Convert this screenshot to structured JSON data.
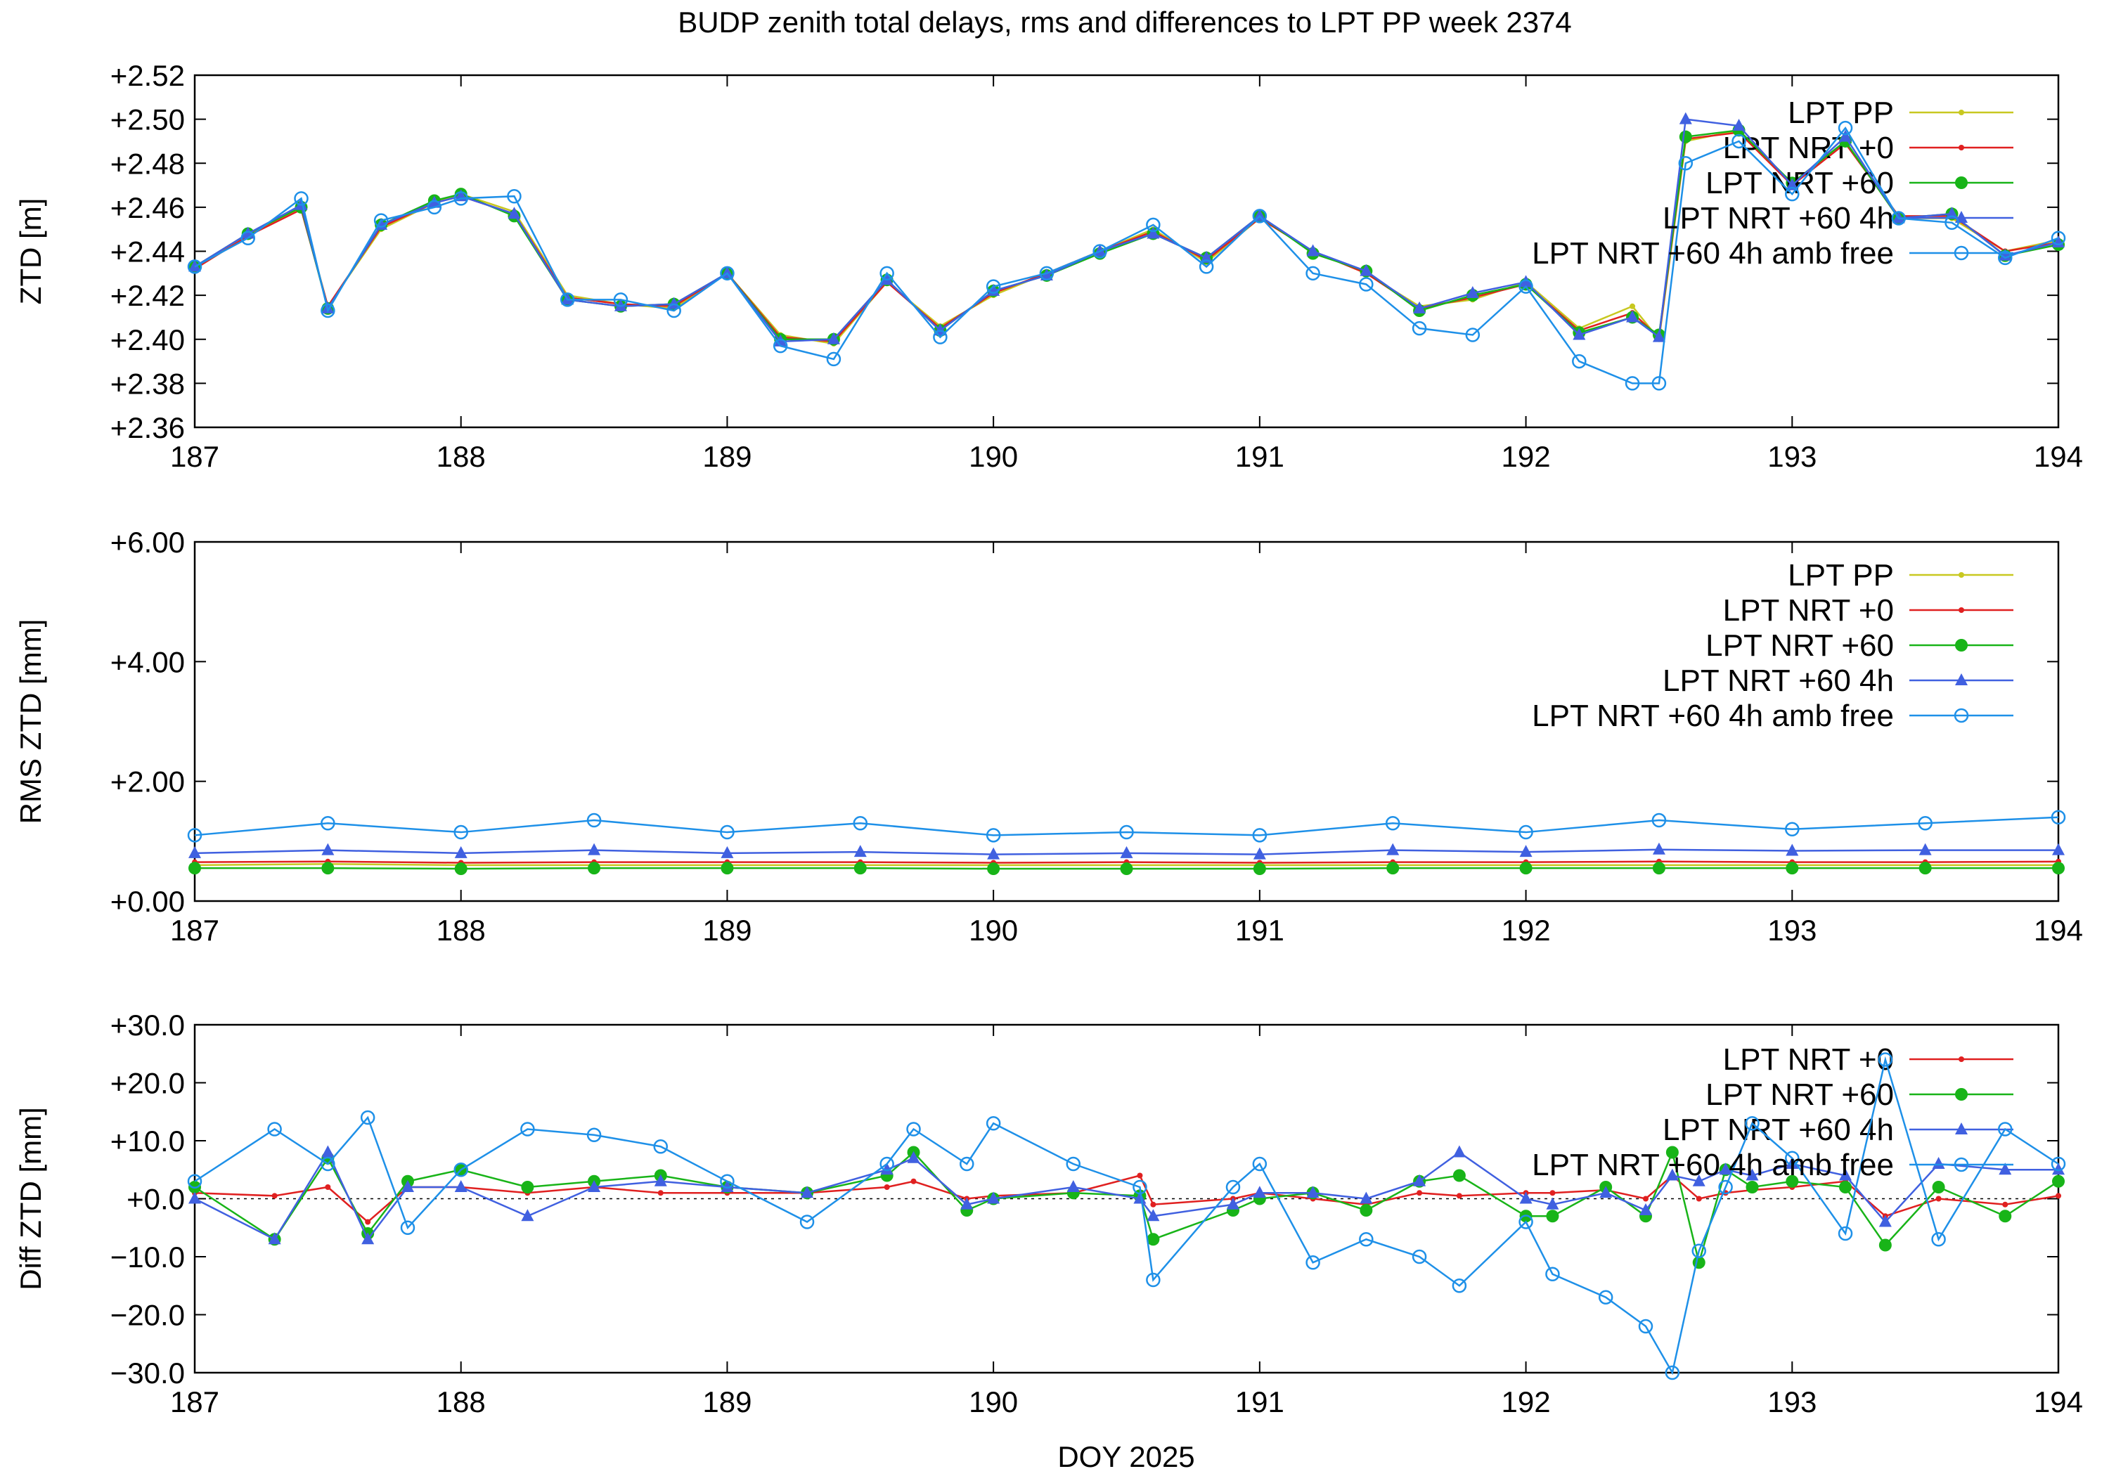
{
  "chart_data": [
    {
      "type": "line",
      "title": "BUDP zenith total delays, rms and differences to LPT PP week 2374",
      "xlabel": "",
      "ylabel": "ZTD [m]",
      "xlim": [
        187,
        194
      ],
      "ylim": [
        2.36,
        2.52
      ],
      "x_ticks": [
        "187",
        "188",
        "189",
        "190",
        "191",
        "192",
        "193",
        "194"
      ],
      "y_ticks": [
        "+2.36",
        "+2.38",
        "+2.40",
        "+2.42",
        "+2.44",
        "+2.46",
        "+2.48",
        "+2.50",
        "+2.52"
      ],
      "legend_position": "top-right",
      "x": [
        187.0,
        187.2,
        187.4,
        187.5,
        187.7,
        187.9,
        188.0,
        188.2,
        188.4,
        188.6,
        188.8,
        189.0,
        189.2,
        189.4,
        189.6,
        189.8,
        190.0,
        190.2,
        190.4,
        190.6,
        190.8,
        191.0,
        191.2,
        191.4,
        191.6,
        191.8,
        192.0,
        192.2,
        192.4,
        192.5,
        192.6,
        192.8,
        193.0,
        193.2,
        193.4,
        193.6,
        193.8,
        194.0
      ],
      "series": [
        {
          "name": "LPT PP",
          "color": "#c8c820",
          "marker": "small-dot",
          "values": [
            2.432,
            2.447,
            2.46,
            2.415,
            2.45,
            2.462,
            2.466,
            2.458,
            2.42,
            2.416,
            2.414,
            2.43,
            2.402,
            2.398,
            2.426,
            2.406,
            2.42,
            2.43,
            2.44,
            2.45,
            2.435,
            2.455,
            2.44,
            2.43,
            2.415,
            2.418,
            2.426,
            2.405,
            2.415,
            2.4,
            2.49,
            2.495,
            2.47,
            2.49,
            2.455,
            2.455,
            2.44,
            2.445
          ]
        },
        {
          "name": "LPT NRT +0",
          "color": "#e02020",
          "marker": "small-dot",
          "values": [
            2.432,
            2.447,
            2.459,
            2.415,
            2.451,
            2.462,
            2.465,
            2.457,
            2.419,
            2.416,
            2.415,
            2.43,
            2.401,
            2.399,
            2.426,
            2.405,
            2.421,
            2.43,
            2.44,
            2.449,
            2.436,
            2.455,
            2.44,
            2.43,
            2.414,
            2.419,
            2.425,
            2.404,
            2.412,
            2.401,
            2.491,
            2.494,
            2.47,
            2.489,
            2.456,
            2.456,
            2.44,
            2.444
          ]
        },
        {
          "name": "LPT NRT +60",
          "color": "#18b418",
          "marker": "filled-circle",
          "values": [
            2.433,
            2.448,
            2.46,
            2.414,
            2.452,
            2.463,
            2.466,
            2.456,
            2.418,
            2.415,
            2.416,
            2.43,
            2.4,
            2.4,
            2.427,
            2.404,
            2.422,
            2.429,
            2.439,
            2.448,
            2.437,
            2.456,
            2.439,
            2.431,
            2.413,
            2.42,
            2.425,
            2.403,
            2.41,
            2.402,
            2.492,
            2.495,
            2.471,
            2.49,
            2.455,
            2.457,
            2.438,
            2.443
          ]
        },
        {
          "name": "LPT NRT +60 4h",
          "color": "#4060e0",
          "marker": "triangle",
          "values": [
            2.433,
            2.448,
            2.461,
            2.414,
            2.452,
            2.462,
            2.465,
            2.457,
            2.418,
            2.415,
            2.416,
            2.43,
            2.399,
            2.4,
            2.427,
            2.404,
            2.422,
            2.429,
            2.44,
            2.448,
            2.437,
            2.456,
            2.44,
            2.431,
            2.414,
            2.421,
            2.426,
            2.402,
            2.41,
            2.401,
            2.5,
            2.497,
            2.47,
            2.492,
            2.455,
            2.457,
            2.438,
            2.444
          ]
        },
        {
          "name": "LPT NRT +60 4h amb free",
          "color": "#1e90e8",
          "marker": "open-circle",
          "values": [
            2.433,
            2.446,
            2.464,
            2.413,
            2.454,
            2.46,
            2.464,
            2.465,
            2.418,
            2.418,
            2.413,
            2.43,
            2.397,
            2.391,
            2.43,
            2.401,
            2.424,
            2.43,
            2.44,
            2.452,
            2.433,
            2.456,
            2.43,
            2.425,
            2.405,
            2.402,
            2.424,
            2.39,
            2.38,
            2.38,
            2.48,
            2.49,
            2.466,
            2.496,
            2.455,
            2.453,
            2.437,
            2.446
          ]
        }
      ]
    },
    {
      "type": "line",
      "title": "",
      "xlabel": "",
      "ylabel": "RMS ZTD [mm]",
      "xlim": [
        187,
        194
      ],
      "ylim": [
        0,
        6
      ],
      "x_ticks": [
        "187",
        "188",
        "189",
        "190",
        "191",
        "192",
        "193",
        "194"
      ],
      "y_ticks": [
        "+0.00",
        "+2.00",
        "+4.00",
        "+6.00"
      ],
      "legend_position": "top-right",
      "x": [
        187.0,
        187.5,
        188.0,
        188.5,
        189.0,
        189.5,
        190.0,
        190.5,
        191.0,
        191.5,
        192.0,
        192.5,
        193.0,
        193.5,
        194.0
      ],
      "series": [
        {
          "name": "LPT PP",
          "color": "#c8c820",
          "marker": "small-dot",
          "values": [
            0.6,
            0.62,
            0.6,
            0.6,
            0.6,
            0.6,
            0.6,
            0.6,
            0.6,
            0.6,
            0.6,
            0.6,
            0.6,
            0.6,
            0.6
          ]
        },
        {
          "name": "LPT NRT +0",
          "color": "#e02020",
          "marker": "small-dot",
          "values": [
            0.65,
            0.66,
            0.64,
            0.65,
            0.65,
            0.65,
            0.64,
            0.65,
            0.64,
            0.65,
            0.65,
            0.66,
            0.65,
            0.65,
            0.66
          ]
        },
        {
          "name": "LPT NRT +60",
          "color": "#18b418",
          "marker": "filled-circle",
          "values": [
            0.55,
            0.55,
            0.54,
            0.55,
            0.55,
            0.55,
            0.54,
            0.54,
            0.54,
            0.55,
            0.55,
            0.55,
            0.55,
            0.55,
            0.55
          ]
        },
        {
          "name": "LPT NRT +60 4h",
          "color": "#4060e0",
          "marker": "triangle",
          "values": [
            0.8,
            0.85,
            0.8,
            0.85,
            0.8,
            0.82,
            0.78,
            0.8,
            0.78,
            0.85,
            0.82,
            0.86,
            0.84,
            0.85,
            0.85
          ]
        },
        {
          "name": "LPT NRT +60 4h amb free",
          "color": "#1e90e8",
          "marker": "open-circle",
          "values": [
            1.1,
            1.3,
            1.15,
            1.35,
            1.15,
            1.3,
            1.1,
            1.15,
            1.1,
            1.3,
            1.15,
            1.35,
            1.2,
            1.3,
            1.4
          ]
        }
      ]
    },
    {
      "type": "line",
      "title": "",
      "xlabel": "DOY 2025",
      "ylabel": "Diff ZTD [mm]",
      "xlim": [
        187,
        194
      ],
      "ylim": [
        -30,
        30
      ],
      "x_ticks": [
        "187",
        "188",
        "189",
        "190",
        "191",
        "192",
        "193",
        "194"
      ],
      "y_ticks": [
        "−30.0",
        "−20.0",
        "−10.0",
        "+0.0",
        "+10.0",
        "+20.0",
        "+30.0"
      ],
      "legend_position": "top-right",
      "x": [
        187.0,
        187.3,
        187.5,
        187.65,
        187.8,
        188.0,
        188.25,
        188.5,
        188.75,
        189.0,
        189.3,
        189.6,
        189.7,
        189.9,
        190.0,
        190.3,
        190.55,
        190.6,
        190.9,
        191.0,
        191.2,
        191.4,
        191.6,
        191.75,
        192.0,
        192.1,
        192.3,
        192.45,
        192.55,
        192.65,
        192.75,
        192.85,
        193.0,
        193.2,
        193.35,
        193.55,
        193.8,
        194.0
      ],
      "series": [
        {
          "name": "LPT NRT +0",
          "color": "#e02020",
          "marker": "small-dot",
          "values": [
            1.0,
            0.5,
            2.0,
            -4.0,
            2.0,
            2.0,
            1.0,
            2.0,
            1.0,
            1.0,
            1.0,
            2.0,
            3.0,
            0.0,
            0.5,
            1.0,
            4.0,
            -1.0,
            0.0,
            1.0,
            0.0,
            -1.0,
            1.0,
            0.5,
            1.0,
            1.0,
            1.5,
            0.0,
            4.0,
            0.0,
            1.0,
            1.5,
            2.0,
            3.0,
            -3.0,
            0.0,
            -1.0,
            0.5
          ]
        },
        {
          "name": "LPT NRT +60",
          "color": "#18b418",
          "marker": "filled-circle",
          "values": [
            2.0,
            -7.0,
            7.0,
            -6.0,
            3.0,
            5.0,
            2.0,
            3.0,
            4.0,
            2.0,
            1.0,
            4.0,
            8.0,
            -2.0,
            0.0,
            1.0,
            0.5,
            -7.0,
            -2.0,
            0.0,
            1.0,
            -2.0,
            3.0,
            4.0,
            -3.0,
            -3.0,
            2.0,
            -3.0,
            8.0,
            -11.0,
            5.0,
            2.0,
            3.0,
            2.0,
            -8.0,
            2.0,
            -3.0,
            3.0
          ]
        },
        {
          "name": "LPT NRT +60 4h",
          "color": "#4060e0",
          "marker": "triangle",
          "values": [
            0.0,
            -7.0,
            8.0,
            -7.0,
            2.0,
            2.0,
            -3.0,
            2.0,
            3.0,
            2.0,
            1.0,
            5.0,
            7.0,
            -1.0,
            0.0,
            2.0,
            0.0,
            -3.0,
            -1.0,
            1.0,
            1.0,
            0.0,
            3.0,
            8.0,
            0.0,
            -1.0,
            1.0,
            -2.0,
            4.0,
            3.0,
            5.0,
            4.0,
            6.0,
            4.0,
            -4.0,
            6.0,
            5.0,
            5.0
          ]
        },
        {
          "name": "LPT NRT +60 4h amb free",
          "color": "#1e90e8",
          "marker": "open-circle",
          "values": [
            3.0,
            12.0,
            6.0,
            14.0,
            -5.0,
            5.0,
            12.0,
            11.0,
            9.0,
            3.0,
            -4.0,
            6.0,
            12.0,
            6.0,
            13.0,
            6.0,
            2.0,
            -14.0,
            2.0,
            6.0,
            -11.0,
            -7.0,
            -10.0,
            -15.0,
            -4.0,
            -13.0,
            -17.0,
            -22.0,
            -30.0,
            -9.0,
            2.0,
            13.0,
            7.0,
            -6.0,
            24.0,
            -7.0,
            12.0,
            6.0
          ]
        }
      ]
    }
  ]
}
